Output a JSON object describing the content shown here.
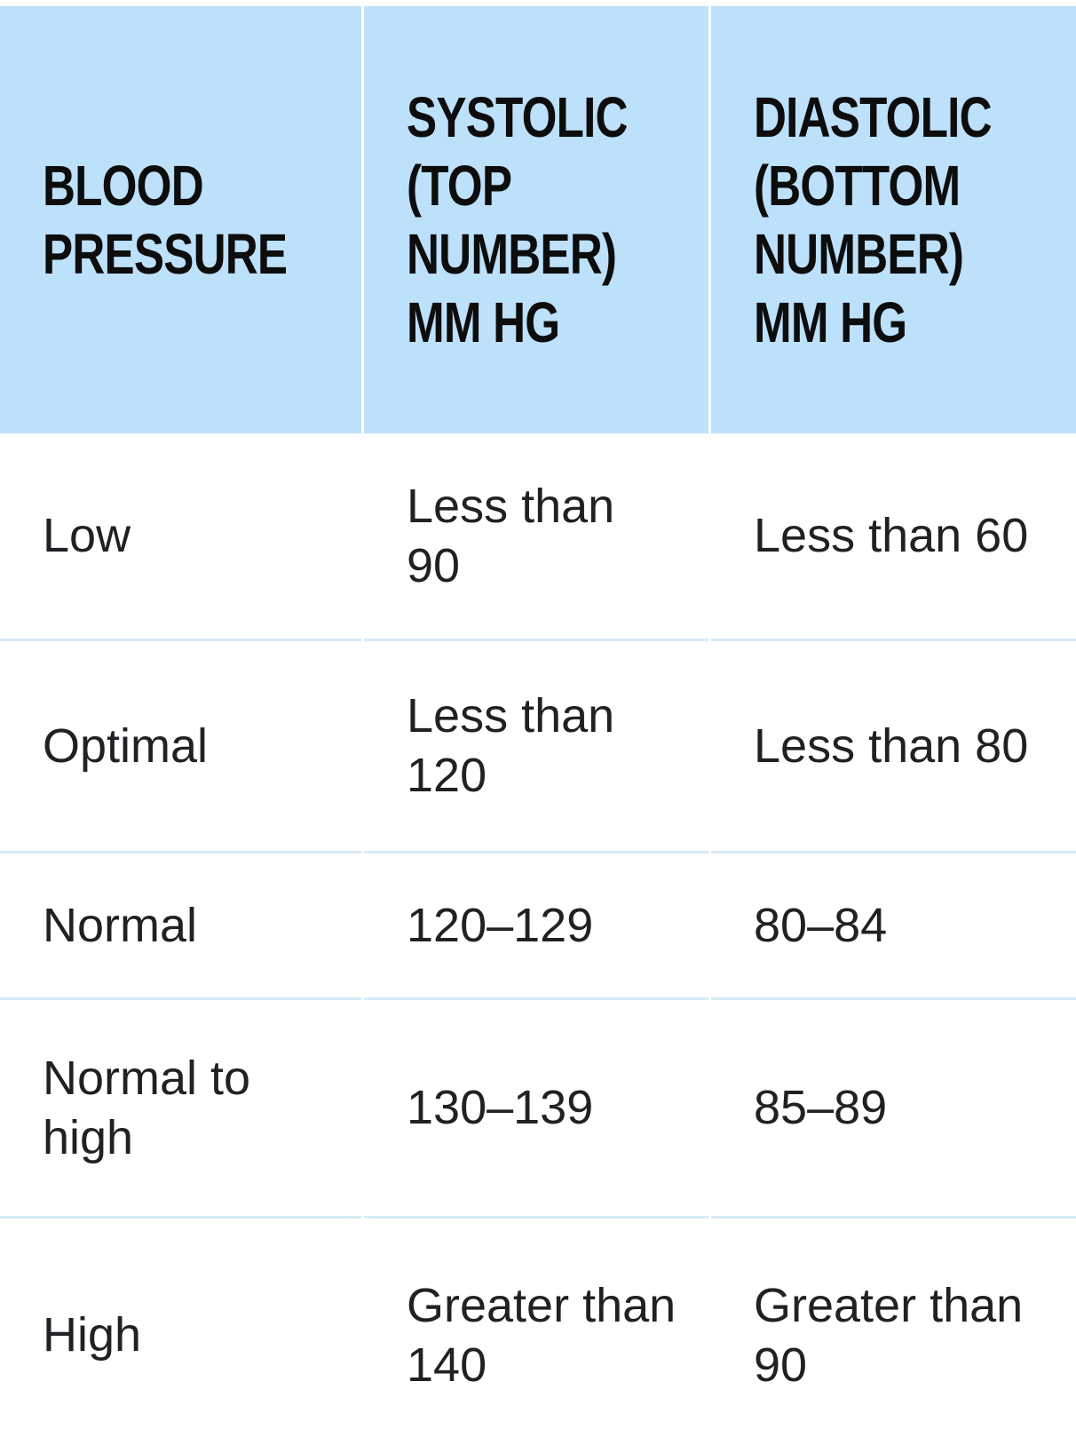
{
  "colors": {
    "background": "#ffffff",
    "header_bg": "#bde0fb",
    "header_text": "#0d0d0d",
    "body_text": "#202124",
    "row_divider": "#d8eaf7"
  },
  "table": {
    "header": [
      "BLOOD\nPRESSURE",
      "SYSTOLIC\n(TOP\nNUMBER)\nMM HG",
      "DIASTOLIC\n(BOTTOM\nNUMBER)\nMM HG"
    ],
    "rows": [
      [
        "Low",
        "Less than\n90",
        "Less than 60"
      ],
      [
        "Optimal",
        "Less than\n120",
        "Less than 80"
      ],
      [
        "Normal",
        "120–129",
        "80–84"
      ],
      [
        "Normal to\nhigh",
        "130–139",
        "85–89"
      ],
      [
        "High",
        "Greater than\n140",
        "Greater than\n90"
      ]
    ]
  },
  "chart_data": {
    "type": "table",
    "title": "",
    "columns": [
      "BLOOD PRESSURE",
      "SYSTOLIC (TOP NUMBER) MM HG",
      "DIASTOLIC (BOTTOM NUMBER) MM HG"
    ],
    "rows": [
      [
        "Low",
        "Less than 90",
        "Less than 60"
      ],
      [
        "Optimal",
        "Less than 120",
        "Less than 80"
      ],
      [
        "Normal",
        "120–129",
        "80–84"
      ],
      [
        "Normal to high",
        "130–139",
        "85–89"
      ],
      [
        "High",
        "Greater than 140",
        "Greater than 90"
      ]
    ]
  }
}
